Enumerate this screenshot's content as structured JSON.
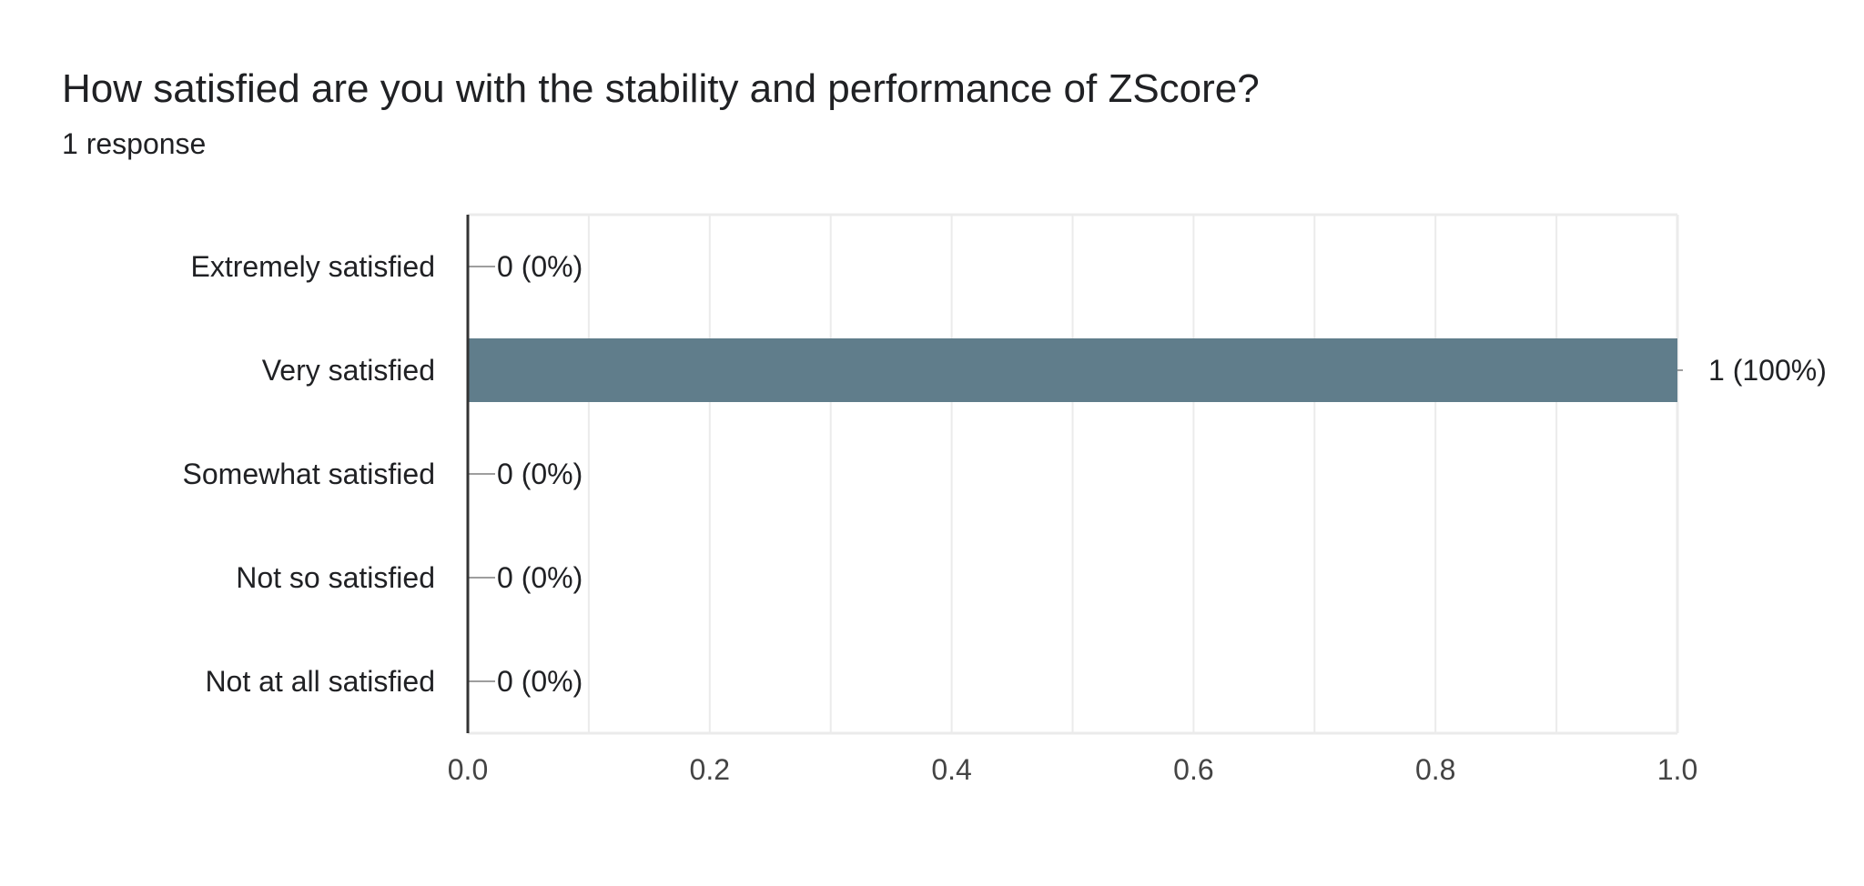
{
  "question": {
    "title": "How satisfied are you with the stability and performance of ZScore?",
    "response_count": "1 response"
  },
  "colors": {
    "bar": "#607d8b",
    "axis": "#333333",
    "grid": "#ebebeb",
    "text": "#202124",
    "tick_text": "#444444",
    "leader": "#9e9e9e"
  },
  "chart_data": {
    "type": "bar",
    "orientation": "horizontal",
    "categories": [
      "Extremely satisfied",
      "Very satisfied",
      "Somewhat satisfied",
      "Not so satisfied",
      "Not at all satisfied"
    ],
    "values": [
      0,
      1,
      0,
      0,
      0
    ],
    "value_labels": [
      "0 (0%)",
      "1 (100%)",
      "0 (0%)",
      "0 (0%)",
      "0 (0%)"
    ],
    "xlim": [
      0,
      1
    ],
    "x_ticks": [
      0,
      0.2,
      0.4,
      0.6,
      0.8,
      1
    ],
    "x_tick_labels": [
      "0.0",
      "0.2",
      "0.4",
      "0.6",
      "0.8",
      "1.0"
    ],
    "grid": true,
    "xlabel": "",
    "ylabel": ""
  }
}
